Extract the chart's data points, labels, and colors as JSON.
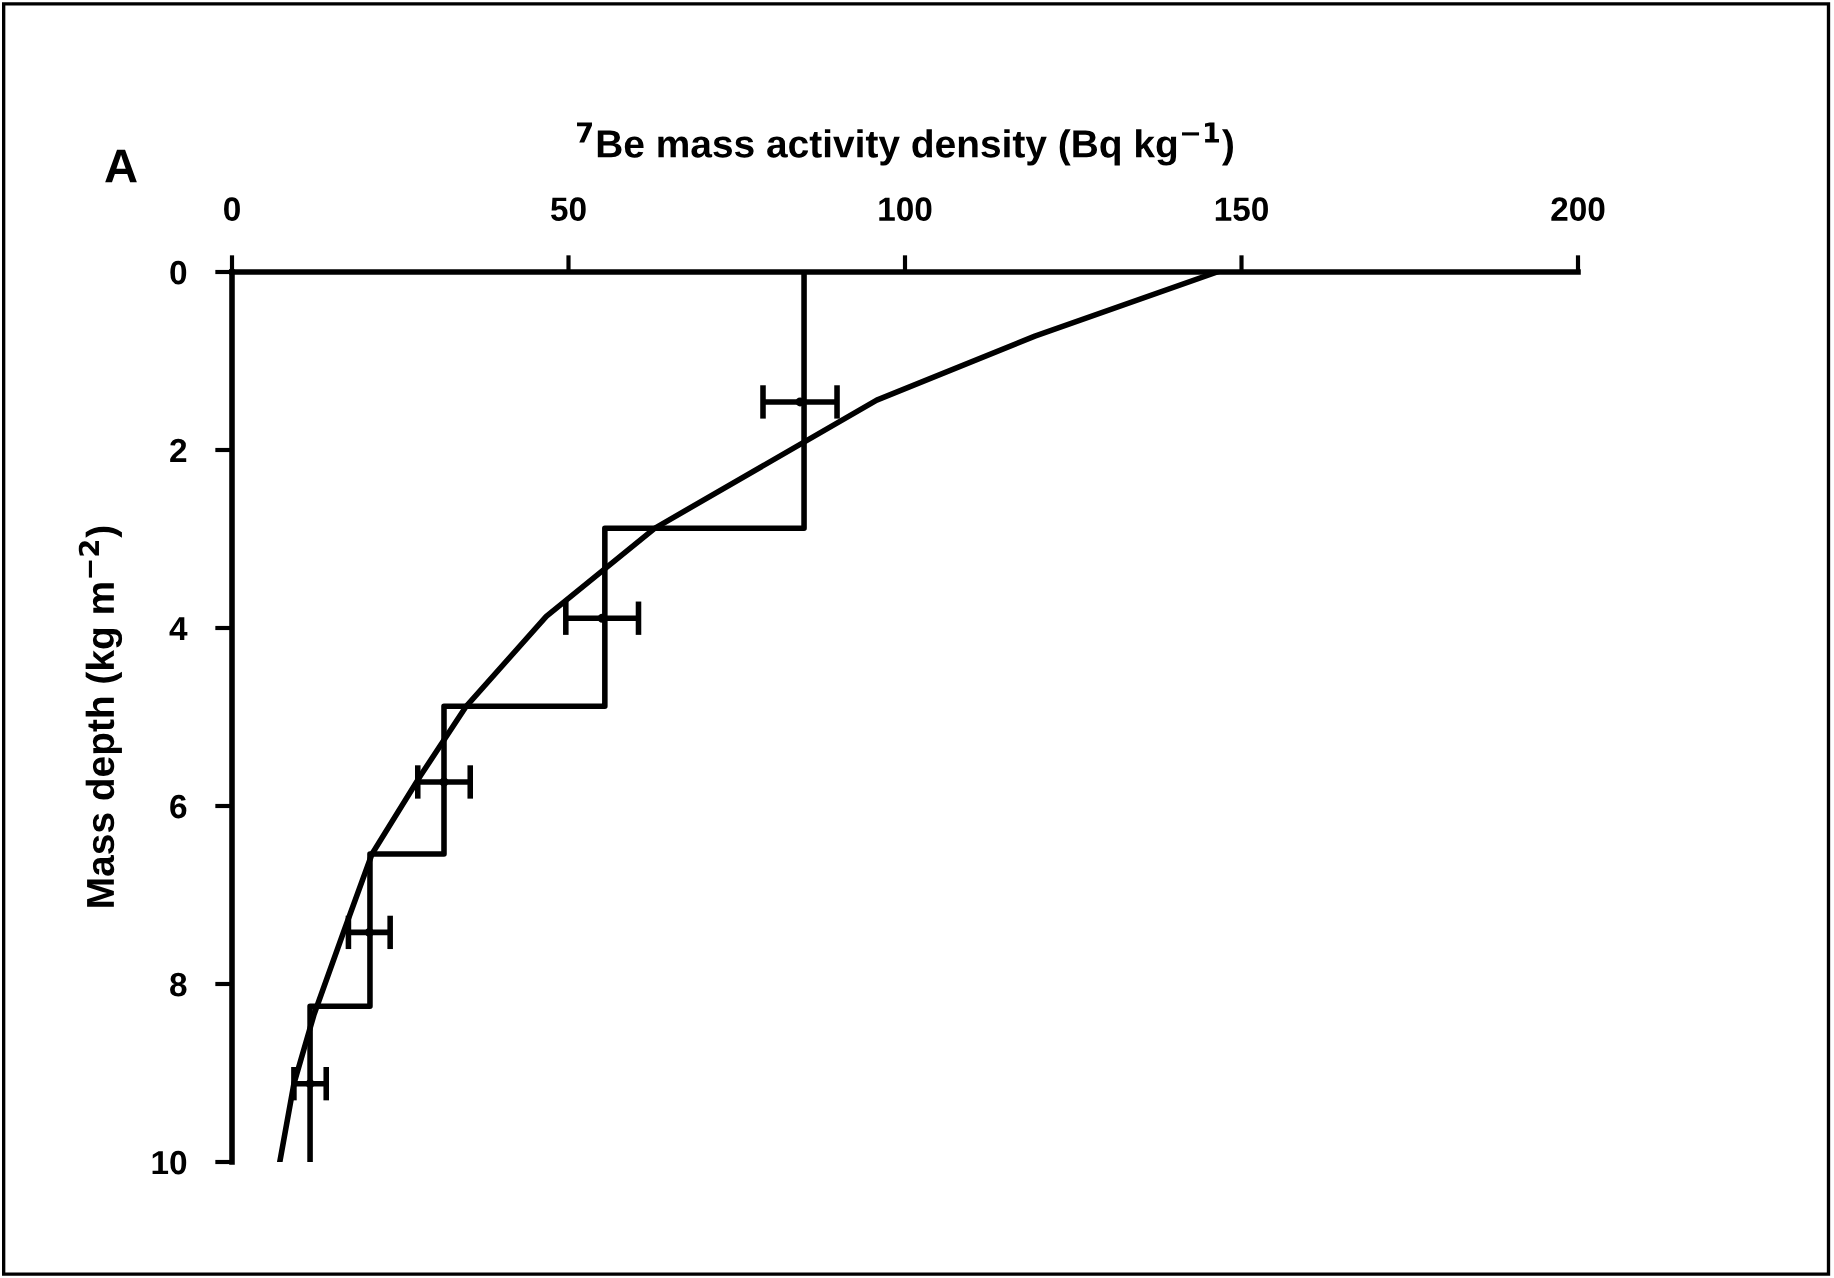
{
  "chart_data": {
    "type": "line",
    "xlabel": "$^{7}$Be mass activity density (Bq kg$^{−1}$)",
    "ylabel": "Mass depth (kg m$^{−2}$)",
    "annotations": [
      "A"
    ],
    "xlim": [
      0,
      200
    ],
    "xticks": [
      0,
      50,
      100,
      150,
      200
    ],
    "ylim": [
      10,
      0
    ],
    "yticks": [
      0,
      2,
      4,
      6,
      8,
      10
    ],
    "grid": false,
    "legend": false,
    "line_style": "solid",
    "series": [
      {
        "color": "#000000",
        "x": [
          85,
          85,
          55.4,
          55.4,
          31.5,
          31.5,
          20.5,
          20.5,
          11.6,
          11.6
        ],
        "values": [
          0,
          2.88,
          2.88,
          4.88,
          4.88,
          6.54,
          6.54,
          8.25,
          8.25,
          10
        ]
      },
      {
        "type": "scatter",
        "color": "#000000",
        "x": [
          84.4,
          55,
          31.5,
          20.4,
          11.6
        ],
        "values": [
          1.46,
          3.89,
          5.73,
          7.42,
          9.12
        ],
        "xerrors": [
          5.5,
          5.4,
          3.9,
          3.1,
          2.4
        ]
      },
      {
        "color": "#000000",
        "x": [
          146.4,
          119.3,
          95.8,
          62.8,
          46.7,
          34.8,
          28,
          20.8,
          16.7,
          12.2,
          9.2,
          7.1
        ],
        "values": [
          0,
          0.72,
          1.44,
          2.88,
          3.87,
          4.88,
          5.66,
          6.54,
          7.39,
          8.34,
          9.12,
          10
        ]
      }
    ]
  }
}
